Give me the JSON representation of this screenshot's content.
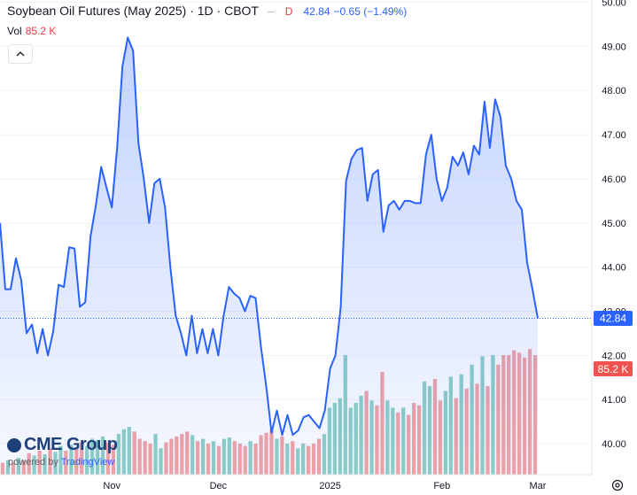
{
  "header": {
    "symbol": "Soybean Oil Futures (May 2025) · 1D · CBOT",
    "dash": "–",
    "flag": "D",
    "last": "42.84",
    "change": "−0.65 (−1.49%)"
  },
  "volume": {
    "label": "Vol",
    "value": "85.2 K"
  },
  "branding": {
    "logo": "CME Group",
    "powered_by": "powered by",
    "platform": "TradingView"
  },
  "icons": {
    "collapse": "chevron-up-icon",
    "settings": "gear-icon"
  },
  "colors": {
    "price_line": "#2962ff",
    "vol_up": "#26a69a",
    "vol_down": "#ef5350",
    "price_label_bg": "#2962ff",
    "vol_label_bg": "#ef5350"
  },
  "chart_data": {
    "type": "area",
    "title": "Soybean Oil Futures (May 2025)",
    "x_ticks": [
      "Nov",
      "Dec",
      "2025",
      "Feb",
      "Mar"
    ],
    "y_ticks": [
      "40.00",
      "41.00",
      "42.00",
      "43.00",
      "44.00",
      "45.00",
      "46.00",
      "47.00",
      "48.00",
      "49.00",
      "50.00"
    ],
    "ylim": [
      39.3,
      50.05
    ],
    "last_price_label": "42.84",
    "last_volume_label": "85.2 K",
    "price": [
      45.0,
      43.5,
      43.5,
      44.2,
      43.7,
      42.5,
      42.7,
      42.05,
      42.6,
      42.0,
      42.55,
      43.6,
      43.55,
      44.45,
      44.42,
      43.1,
      43.2,
      44.7,
      45.4,
      46.27,
      45.8,
      45.35,
      46.7,
      48.55,
      49.2,
      48.9,
      46.8,
      46.0,
      45.0,
      45.9,
      46.0,
      45.35,
      44.0,
      42.9,
      42.5,
      42.0,
      42.9,
      42.05,
      42.6,
      42.05,
      42.6,
      42.0,
      42.9,
      43.55,
      43.4,
      43.3,
      43.0,
      43.35,
      43.3,
      42.2,
      41.3,
      40.25,
      40.75,
      40.2,
      40.65,
      40.2,
      40.3,
      40.6,
      40.65,
      40.5,
      40.35,
      40.75,
      41.7,
      42.0,
      43.1,
      45.95,
      46.45,
      46.65,
      46.7,
      45.5,
      46.1,
      46.2,
      44.8,
      45.4,
      45.5,
      45.3,
      45.5,
      45.5,
      45.45,
      45.45,
      46.55,
      47.0,
      46.0,
      45.5,
      45.8,
      46.5,
      46.3,
      46.6,
      46.1,
      46.75,
      46.55,
      47.75,
      46.7,
      47.8,
      47.4,
      46.3,
      46.0,
      45.5,
      45.3,
      44.1,
      43.5,
      42.84
    ],
    "volume": [
      {
        "v": 0.1,
        "up": false
      },
      {
        "v": 0.12,
        "up": true
      },
      {
        "v": 0.1,
        "up": false
      },
      {
        "v": 0.14,
        "up": true
      },
      {
        "v": 0.12,
        "up": false
      },
      {
        "v": 0.18,
        "up": false
      },
      {
        "v": 0.16,
        "up": true
      },
      {
        "v": 0.2,
        "up": false
      },
      {
        "v": 0.17,
        "up": true
      },
      {
        "v": 0.22,
        "up": false
      },
      {
        "v": 0.19,
        "up": true
      },
      {
        "v": 0.24,
        "up": true
      },
      {
        "v": 0.2,
        "up": false
      },
      {
        "v": 0.25,
        "up": true
      },
      {
        "v": 0.22,
        "up": false
      },
      {
        "v": 0.27,
        "up": false
      },
      {
        "v": 0.24,
        "up": true
      },
      {
        "v": 0.3,
        "up": true
      },
      {
        "v": 0.29,
        "up": true
      },
      {
        "v": 0.32,
        "up": true
      },
      {
        "v": 0.27,
        "up": false
      },
      {
        "v": 0.25,
        "up": false
      },
      {
        "v": 0.34,
        "up": true
      },
      {
        "v": 0.38,
        "up": true
      },
      {
        "v": 0.4,
        "up": true
      },
      {
        "v": 0.36,
        "up": false
      },
      {
        "v": 0.3,
        "up": false
      },
      {
        "v": 0.28,
        "up": false
      },
      {
        "v": 0.26,
        "up": false
      },
      {
        "v": 0.34,
        "up": true
      },
      {
        "v": 0.22,
        "up": true
      },
      {
        "v": 0.27,
        "up": false
      },
      {
        "v": 0.3,
        "up": false
      },
      {
        "v": 0.32,
        "up": false
      },
      {
        "v": 0.34,
        "up": false
      },
      {
        "v": 0.36,
        "up": false
      },
      {
        "v": 0.33,
        "up": true
      },
      {
        "v": 0.28,
        "up": false
      },
      {
        "v": 0.3,
        "up": true
      },
      {
        "v": 0.26,
        "up": false
      },
      {
        "v": 0.28,
        "up": true
      },
      {
        "v": 0.24,
        "up": false
      },
      {
        "v": 0.3,
        "up": true
      },
      {
        "v": 0.31,
        "up": true
      },
      {
        "v": 0.28,
        "up": false
      },
      {
        "v": 0.26,
        "up": false
      },
      {
        "v": 0.24,
        "up": false
      },
      {
        "v": 0.28,
        "up": true
      },
      {
        "v": 0.26,
        "up": false
      },
      {
        "v": 0.33,
        "up": false
      },
      {
        "v": 0.35,
        "up": false
      },
      {
        "v": 0.38,
        "up": false
      },
      {
        "v": 0.3,
        "up": true
      },
      {
        "v": 0.32,
        "up": false
      },
      {
        "v": 0.26,
        "up": true
      },
      {
        "v": 0.28,
        "up": false
      },
      {
        "v": 0.22,
        "up": true
      },
      {
        "v": 0.26,
        "up": true
      },
      {
        "v": 0.24,
        "up": false
      },
      {
        "v": 0.26,
        "up": false
      },
      {
        "v": 0.3,
        "up": false
      },
      {
        "v": 0.34,
        "up": true
      },
      {
        "v": 0.56,
        "up": true
      },
      {
        "v": 0.6,
        "up": true
      },
      {
        "v": 0.64,
        "up": true
      },
      {
        "v": 1.0,
        "up": true
      },
      {
        "v": 0.56,
        "up": true
      },
      {
        "v": 0.6,
        "up": true
      },
      {
        "v": 0.66,
        "up": true
      },
      {
        "v": 0.7,
        "up": false
      },
      {
        "v": 0.62,
        "up": true
      },
      {
        "v": 0.58,
        "up": false
      },
      {
        "v": 0.86,
        "up": false
      },
      {
        "v": 0.62,
        "up": true
      },
      {
        "v": 0.56,
        "up": true
      },
      {
        "v": 0.52,
        "up": false
      },
      {
        "v": 0.56,
        "up": true
      },
      {
        "v": 0.5,
        "up": false
      },
      {
        "v": 0.6,
        "up": false
      },
      {
        "v": 0.58,
        "up": false
      },
      {
        "v": 0.78,
        "up": true
      },
      {
        "v": 0.74,
        "up": true
      },
      {
        "v": 0.8,
        "up": false
      },
      {
        "v": 0.62,
        "up": false
      },
      {
        "v": 0.7,
        "up": true
      },
      {
        "v": 0.82,
        "up": true
      },
      {
        "v": 0.64,
        "up": false
      },
      {
        "v": 0.84,
        "up": true
      },
      {
        "v": 0.72,
        "up": false
      },
      {
        "v": 0.92,
        "up": true
      },
      {
        "v": 0.76,
        "up": false
      },
      {
        "v": 0.99,
        "up": true
      },
      {
        "v": 0.74,
        "up": false
      },
      {
        "v": 1.0,
        "up": true
      },
      {
        "v": 0.92,
        "up": false
      },
      {
        "v": 1.0,
        "up": false
      },
      {
        "v": 1.0,
        "up": false
      },
      {
        "v": 1.04,
        "up": false
      },
      {
        "v": 1.02,
        "up": false
      },
      {
        "v": 0.98,
        "up": false
      },
      {
        "v": 1.05,
        "up": false
      },
      {
        "v": 1.0,
        "up": false
      }
    ]
  }
}
